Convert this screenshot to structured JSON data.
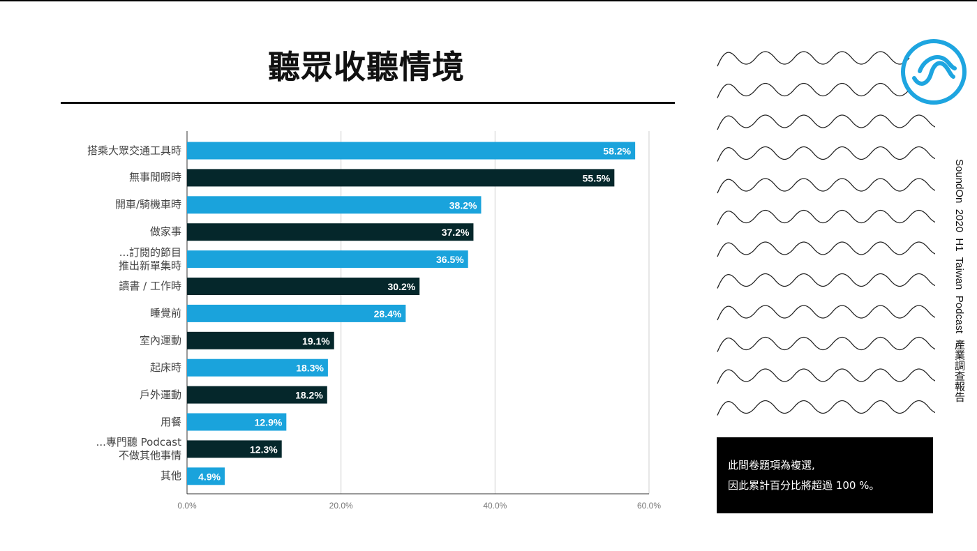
{
  "title": "聽眾收聽情境",
  "side_text": "SoundOn  2020  H1  Taiwan  Podcast  產業調查報告",
  "note": {
    "line1": "此問卷題項為複選,",
    "line2": "因此累計百分比將超過 100 %。"
  },
  "colors": {
    "light": "#1aa3dc",
    "dark": "#05272b",
    "logo": "#1ea5e0"
  },
  "logo_icon": "soundon-wave-logo-icon",
  "chart_data": {
    "type": "bar",
    "orientation": "horizontal",
    "categories": [
      "搭乘大眾交通工具時",
      "無事閒暇時",
      "開車/騎機車時",
      "做家事",
      "...訂閱的節目\n推出新單集時",
      "讀書 / 工作時",
      "睡覺前",
      "室內運動",
      "起床時",
      "戶外運動",
      "用餐",
      "...專門聽 Podcast\n不做其他事情",
      "其他"
    ],
    "values": [
      58.2,
      55.5,
      38.2,
      37.2,
      36.5,
      30.2,
      28.4,
      19.1,
      18.3,
      18.2,
      12.9,
      12.3,
      4.9
    ],
    "value_labels": [
      "58.2%",
      "55.5%",
      "38.2%",
      "37.2%",
      "36.5%",
      "30.2%",
      "28.4%",
      "19.1%",
      "18.3%",
      "18.2%",
      "12.9%",
      "12.3%",
      "4.9%"
    ],
    "bar_colors": [
      "light",
      "dark",
      "light",
      "dark",
      "light",
      "dark",
      "light",
      "dark",
      "light",
      "dark",
      "light",
      "dark",
      "light"
    ],
    "xticks": [
      0,
      20,
      40,
      60
    ],
    "xtick_labels": [
      "0.0%",
      "20.0%",
      "40.0%",
      "60.0%"
    ],
    "xlim": [
      0,
      60
    ],
    "grid": true
  }
}
